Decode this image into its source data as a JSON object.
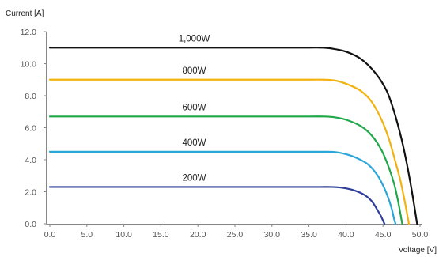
{
  "chart_data": {
    "type": "line",
    "xlabel": "Voltage [V]",
    "ylabel": "Current [A]",
    "xlim": [
      0,
      50
    ],
    "ylim": [
      0,
      12
    ],
    "x_ticks": [
      "0.0",
      "5.0",
      "10.0",
      "15.0",
      "20.0",
      "25.0",
      "30.0",
      "35.0",
      "40.0",
      "45.0",
      "50.0"
    ],
    "y_ticks": [
      "0.0",
      "2.0",
      "4.0",
      "6.0",
      "8.0",
      "10.0",
      "12.0"
    ],
    "grid": false,
    "legend": "inline labels above curves",
    "series": [
      {
        "name": "1,000W",
        "color": "#111111",
        "x": [
          0,
          10,
          20,
          30,
          35,
          36.5,
          38,
          40,
          42,
          44,
          45.5,
          46.5,
          47.5,
          48.2,
          48.8,
          49.3,
          49.6
        ],
        "y": [
          11.0,
          11.0,
          11.0,
          11.0,
          11.0,
          11.0,
          10.95,
          10.75,
          10.3,
          9.4,
          8.3,
          7.0,
          5.3,
          3.8,
          2.3,
          0.9,
          0
        ]
      },
      {
        "name": "800W",
        "color": "#f2b20f",
        "x": [
          0,
          10,
          20,
          30,
          35,
          37,
          38.5,
          40,
          42,
          43.5,
          44.8,
          45.8,
          46.6,
          47.3,
          47.9,
          48.3,
          48.5
        ],
        "y": [
          9.0,
          9.0,
          9.0,
          9.0,
          9.0,
          9.0,
          8.95,
          8.75,
          8.3,
          7.6,
          6.5,
          5.3,
          4.0,
          2.8,
          1.5,
          0.5,
          0
        ]
      },
      {
        "name": "600W",
        "color": "#1fa84a",
        "x": [
          0,
          10,
          20,
          30,
          35,
          37,
          38.5,
          40,
          42,
          43.5,
          44.8,
          45.8,
          46.5,
          47.0,
          47.4,
          47.6
        ],
        "y": [
          6.7,
          6.7,
          6.7,
          6.7,
          6.7,
          6.7,
          6.65,
          6.5,
          6.1,
          5.5,
          4.6,
          3.5,
          2.5,
          1.5,
          0.5,
          0
        ]
      },
      {
        "name": "400W",
        "color": "#2aa7d8",
        "x": [
          0,
          10,
          20,
          30,
          35,
          37,
          38.5,
          40,
          41.5,
          43,
          44.3,
          45.2,
          45.8,
          46.2,
          46.5,
          46.7
        ],
        "y": [
          4.5,
          4.5,
          4.5,
          4.5,
          4.5,
          4.5,
          4.48,
          4.35,
          4.1,
          3.7,
          3.0,
          2.2,
          1.5,
          0.9,
          0.3,
          0
        ]
      },
      {
        "name": "200W",
        "color": "#2e3e9a",
        "x": [
          0,
          10,
          20,
          30,
          35,
          36.5,
          38,
          39.5,
          41,
          42.5,
          43.5,
          44.2,
          44.7,
          45.0,
          45.2
        ],
        "y": [
          2.3,
          2.3,
          2.3,
          2.3,
          2.3,
          2.3,
          2.3,
          2.25,
          2.1,
          1.8,
          1.4,
          0.9,
          0.5,
          0.2,
          0
        ]
      }
    ]
  }
}
